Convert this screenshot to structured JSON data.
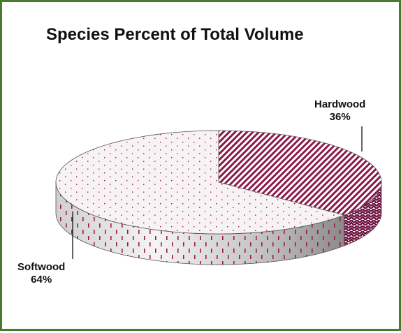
{
  "chart_data": {
    "type": "pie",
    "title": "Species Percent of Total Volume",
    "slices": [
      {
        "label": "Hardwood",
        "value": 36,
        "display": "36%",
        "color": "#8b1a4a"
      },
      {
        "label": "Softwood",
        "value": 64,
        "display": "64%",
        "color": "#a01c3a"
      }
    ],
    "style": "3d"
  },
  "colors": {
    "border": "#4a7a2e",
    "hardwood": "#8b1a4a",
    "softwood_dots": "#a01c3a"
  }
}
